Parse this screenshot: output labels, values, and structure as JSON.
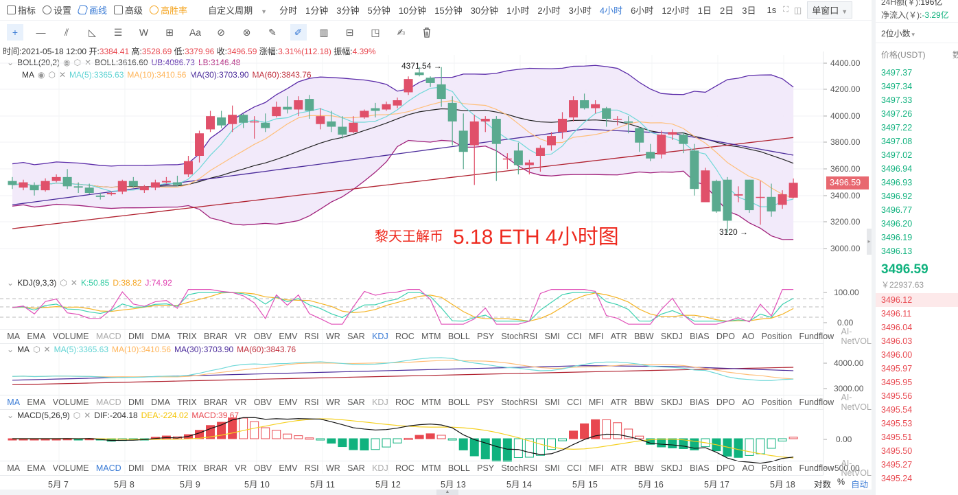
{
  "toolbar": {
    "items": [
      {
        "label": "指标",
        "icon": "indicator-icon"
      },
      {
        "label": "设置",
        "icon": "settings-icon"
      },
      {
        "label": "画线",
        "icon": "draw-line-icon",
        "active": true
      },
      {
        "label": "高级",
        "icon": "advanced-icon"
      },
      {
        "label": "高胜率",
        "icon": "high-winrate-icon",
        "highlight": true
      }
    ],
    "custom_period": "自定义周期",
    "periods": [
      "分时",
      "1分钟",
      "3分钟",
      "5分钟",
      "10分钟",
      "15分钟",
      "30分钟",
      "1小时",
      "2小时",
      "3小时",
      "4小时",
      "6小时",
      "12小时",
      "1日",
      "2日",
      "3日"
    ],
    "active_period": "4小时",
    "seconds": "1s",
    "window_mode": "单窗口"
  },
  "drawing_tools": [
    "crosshair-icon",
    "horizontal-line-icon",
    "parallel-channel-icon",
    "triangle-icon",
    "fib-lines-icon",
    "wave-icon",
    "rectangle-icon",
    "text-icon",
    "magnet-icon",
    "magnet-strong-icon",
    "ruler-icon",
    "brush-icon",
    "candle-pattern-icon",
    "lock-icon",
    "bookmark-icon",
    "note-icon",
    "delete-icon"
  ],
  "ohlc": {
    "time_label": "时间:",
    "time": "2021-05-18 12:00",
    "open_label": "开:",
    "open": "3384.41",
    "high_label": "高:",
    "high": "3528.69",
    "low_label": "低:",
    "low": "3379.96",
    "close_label": "收:",
    "close": "3496.59",
    "change_label": "涨幅:",
    "change": "3.31%(112.18)",
    "amp_label": "振幅:",
    "amp": "4.39%"
  },
  "boll": {
    "name": "BOLL(20,2)",
    "mid": "BOLL:3616.60",
    "ub": "UB:4086.73",
    "lb": "LB:3146.48"
  },
  "ma": {
    "name": "MA",
    "ma5": "MA(5):3365.63",
    "ma10": "MA(10):3410.56",
    "ma30": "MA(30):3703.90",
    "ma60": "MA(60):3843.76"
  },
  "kdj": {
    "name": "KDJ(9,3,3)",
    "k": "K:50.85",
    "d": "D:38.82",
    "j": "J:74.92"
  },
  "macd": {
    "name": "MACD(5,26,9)",
    "dif": "DIF:-204.18",
    "dea": "DEA:-224.02",
    "macd": "MACD:39.67"
  },
  "indicator_tabs": [
    "MA",
    "EMA",
    "VOLUME",
    "MACD",
    "DMI",
    "DMA",
    "TRIX",
    "BRAR",
    "VR",
    "OBV",
    "EMV",
    "RSI",
    "WR",
    "SAR",
    "KDJ",
    "ROC",
    "MTM",
    "BOLL",
    "PSY",
    "StochRSI",
    "SMI",
    "CCI",
    "MFI",
    "ATR",
    "BBW",
    "SKDJ",
    "BIAS",
    "DPO",
    "AO",
    "Position",
    "Fundflow",
    "AI-NetVOL"
  ],
  "price_axis": [
    "4400.00",
    "4200.00",
    "4000.00",
    "3800.00",
    "3600.00",
    "3400.00",
    "3200.00",
    "3000.00"
  ],
  "kdj_axis": [
    "100.00",
    "0.00"
  ],
  "ma_axis": [
    "4000.00",
    "3000.00"
  ],
  "macd_axis": [
    "0.00",
    "-500.00"
  ],
  "current_price_tag": "3496.59",
  "annotations": {
    "high": "4371.54 →",
    "low": "3120 →"
  },
  "watermark": {
    "author": "黎天王解币",
    "title": "5.18 ETH 4小时图"
  },
  "x_axis": [
    "5月 7",
    "5月 8",
    "5月 9",
    "5月 10",
    "5月 11",
    "5月 12",
    "5月 13",
    "5月 14",
    "5月 15",
    "5月 16",
    "5月 17",
    "5月 18"
  ],
  "scale_options": {
    "log": "对数",
    "percent": "%",
    "auto": "自动"
  },
  "colors": {
    "up": "#e0506a",
    "down": "#5aaa8f",
    "accent": "#3a7bd5",
    "ma5": "#6fd8d8",
    "ma10": "#ffbf7a",
    "ma30": "#4a2a9a",
    "ma60": "#b0202e",
    "boll_band": "#f1e8fa"
  },
  "orderbook": {
    "vol24h_label": "24H额(￥):",
    "vol24h": "196亿",
    "netflow_label": "净流入(￥):",
    "netflow": "-3.29亿",
    "decimals": "2位小数",
    "col_price": "价格(USDT)",
    "col_amount": "数",
    "asks": [
      "3497.37",
      "3497.34",
      "3497.33",
      "3497.26",
      "3497.22",
      "3497.08",
      "3497.02",
      "3496.94",
      "3496.93",
      "3496.92",
      "3496.77",
      "3496.20",
      "3496.19",
      "3496.13"
    ],
    "last_price": "3496.59",
    "last_cny": "￥22937.63",
    "bids": [
      "3496.12",
      "3496.11",
      "3496.04",
      "3496.03",
      "3496.00",
      "3495.97",
      "3495.95",
      "3495.56",
      "3495.54",
      "3495.53",
      "3495.51",
      "3495.50",
      "3495.27",
      "3495.24"
    ]
  },
  "candles": [
    [
      3510,
      3480,
      3540,
      3450
    ],
    [
      3460,
      3500,
      3520,
      3440
    ],
    [
      3480,
      3440,
      3500,
      3400
    ],
    [
      3440,
      3510,
      3530,
      3430
    ],
    [
      3510,
      3540,
      3560,
      3500
    ],
    [
      3540,
      3470,
      3600,
      3450
    ],
    [
      3470,
      3460,
      3500,
      3420
    ],
    [
      3460,
      3420,
      3490,
      3410
    ],
    [
      3400,
      3390,
      3420,
      3370
    ],
    [
      3410,
      3420,
      3430,
      3400
    ],
    [
      3430,
      3510,
      3520,
      3410
    ],
    [
      3510,
      3470,
      3540,
      3460
    ],
    [
      3440,
      3470,
      3480,
      3420
    ],
    [
      3460,
      3500,
      3520,
      3440
    ],
    [
      3500,
      3510,
      3540,
      3490
    ],
    [
      3500,
      3480,
      3550,
      3470
    ],
    [
      3560,
      3660,
      3700,
      3540
    ],
    [
      3700,
      3870,
      3890,
      3650
    ],
    [
      3900,
      4000,
      4040,
      3880
    ],
    [
      3990,
      3930,
      4040,
      3910
    ],
    [
      3940,
      4010,
      4080,
      3880
    ],
    [
      4010,
      3950,
      4020,
      3910
    ],
    [
      3960,
      3960,
      4000,
      3830
    ],
    [
      3950,
      3910,
      4020,
      3880
    ],
    [
      4000,
      4070,
      4110,
      3990
    ],
    [
      4070,
      4050,
      4150,
      4020
    ],
    [
      4050,
      4120,
      4150,
      4000
    ],
    [
      4130,
      4040,
      4160,
      3980
    ],
    [
      3940,
      4000,
      4060,
      3900
    ],
    [
      3960,
      3920,
      4040,
      3880
    ],
    [
      3920,
      3860,
      4000,
      3830
    ],
    [
      3880,
      3950,
      4000,
      3870
    ],
    [
      3990,
      4040,
      4050,
      3980
    ],
    [
      4060,
      4040,
      4100,
      3990
    ],
    [
      4050,
      4090,
      4110,
      4040
    ],
    [
      4080,
      4120,
      4140,
      4060
    ],
    [
      4180,
      4280,
      4300,
      4160
    ],
    [
      4330,
      4310,
      4370,
      4300
    ],
    [
      4290,
      4250,
      4300,
      4220
    ],
    [
      4240,
      4130,
      4370,
      4070
    ],
    [
      4100,
      3960,
      4150,
      3780
    ],
    [
      3890,
      3730,
      4020,
      3600
    ],
    [
      3780,
      3960,
      4010,
      3480
    ],
    [
      3960,
      3980,
      4000,
      3880
    ],
    [
      3980,
      3790,
      4000,
      3510
    ],
    [
      3680,
      3680,
      3720,
      3600
    ],
    [
      3740,
      3630,
      3800,
      3560
    ],
    [
      3630,
      3650,
      3670,
      3560
    ],
    [
      3700,
      3760,
      3780,
      3580
    ],
    [
      3780,
      3850,
      3880,
      3740
    ],
    [
      3880,
      3980,
      4030,
      3830
    ],
    [
      3990,
      4120,
      4150,
      3960
    ],
    [
      4120,
      4060,
      4170,
      4050
    ],
    [
      4060,
      4090,
      4120,
      4020
    ],
    [
      4060,
      3980,
      4070,
      3920
    ],
    [
      3980,
      3980,
      4000,
      3930
    ],
    [
      3960,
      3950,
      4000,
      3870
    ],
    [
      3910,
      3800,
      3920,
      3730
    ],
    [
      3730,
      3680,
      3790,
      3660
    ],
    [
      3710,
      3860,
      3890,
      3680
    ],
    [
      3860,
      3880,
      3900,
      3820
    ],
    [
      3860,
      3790,
      3880,
      3720
    ],
    [
      3740,
      3450,
      3790,
      3400
    ],
    [
      3350,
      3590,
      3610,
      3350
    ],
    [
      3510,
      3280,
      3520,
      3270
    ],
    [
      3520,
      3210,
      3540,
      3120
    ],
    [
      3400,
      3410,
      3470,
      3350
    ],
    [
      3520,
      3290,
      3520,
      3270
    ],
    [
      3390,
      3390,
      3510,
      3180
    ],
    [
      3390,
      3280,
      3490,
      3240
    ],
    [
      3330,
      3410,
      3440,
      3300
    ],
    [
      3384.41,
      3496.59,
      3528.69,
      3379.96
    ]
  ]
}
